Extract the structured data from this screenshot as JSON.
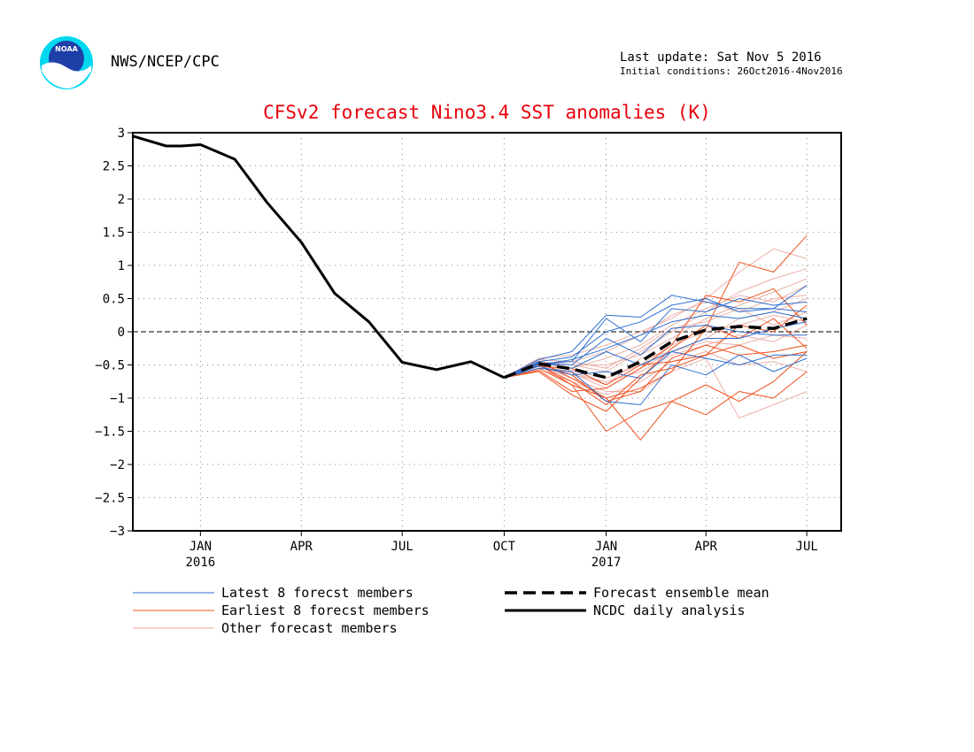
{
  "header": {
    "agency": "NWS/NCEP/CPC",
    "last_update": "Last update: Sat Nov  5 2016",
    "initial_conditions": "Initial conditions: 26Oct2016-4Nov2016",
    "logo_text": "NOAA"
  },
  "colors": {
    "title": "#e8000b",
    "latest": "#2c6fd1",
    "earliest": "#f0501e",
    "other": "#e8a39a",
    "mean": "#000000",
    "analysis": "#000000"
  },
  "chart_data": {
    "type": "line",
    "title": "CFSv2 forecast Nino3.4 SST anomalies (K)",
    "xlabel": "",
    "ylabel": "",
    "ylim": [
      -3,
      3
    ],
    "yticks": [
      "3",
      "2.5",
      "2",
      "1.5",
      "1",
      "0.5",
      "0",
      "−0.5",
      "−1",
      "−1.5",
      "−2",
      "−2.5",
      "−3"
    ],
    "xlim": [
      "2015-11",
      "2017-08"
    ],
    "xticks": [
      {
        "month": "JAN",
        "year": "2016"
      },
      {
        "month": "APR",
        "year": ""
      },
      {
        "month": "JUL",
        "year": ""
      },
      {
        "month": "OCT",
        "year": ""
      },
      {
        "month": "JAN",
        "year": "2017"
      },
      {
        "month": "APR",
        "year": ""
      },
      {
        "month": "JUL",
        "year": ""
      }
    ],
    "grid": true,
    "zero_line": true,
    "series": [
      {
        "name": "NCDC daily analysis",
        "style": "solid-thick",
        "points": [
          [
            "2015-11-01",
            2.95
          ],
          [
            "2015-12-01",
            2.8
          ],
          [
            "2015-12-15",
            2.8
          ],
          [
            "2016-01-01",
            2.82
          ],
          [
            "2016-02-01",
            2.6
          ],
          [
            "2016-03-01",
            1.95
          ],
          [
            "2016-04-01",
            1.35
          ],
          [
            "2016-05-01",
            0.58
          ],
          [
            "2016-06-01",
            0.15
          ],
          [
            "2016-07-01",
            -0.46
          ],
          [
            "2016-08-01",
            -0.57
          ],
          [
            "2016-09-01",
            -0.45
          ],
          [
            "2016-10-01",
            -0.69
          ]
        ]
      },
      {
        "name": "Forecast ensemble mean",
        "style": "dashed-thick",
        "points": [
          [
            "2016-10-01",
            -0.69
          ],
          [
            "2016-11-01",
            -0.48
          ],
          [
            "2016-12-01",
            -0.56
          ],
          [
            "2017-01-01",
            -0.69
          ],
          [
            "2017-02-01",
            -0.45
          ],
          [
            "2017-03-01",
            -0.15
          ],
          [
            "2017-04-01",
            0.03
          ],
          [
            "2017-05-01",
            0.08
          ],
          [
            "2017-06-01",
            0.05
          ],
          [
            "2017-07-01",
            0.2
          ]
        ]
      },
      {
        "name": "Latest 8 forecst members",
        "style": "thin-blue",
        "months": [
          "2016-10-01",
          "2016-11-01",
          "2016-12-01",
          "2017-01-01",
          "2017-02-01",
          "2017-03-01",
          "2017-04-01",
          "2017-05-01",
          "2017-06-01",
          "2017-07-01"
        ],
        "members": [
          [
            -0.69,
            -0.42,
            -0.3,
            0.25,
            0.22,
            0.55,
            0.45,
            0.35,
            0.35,
            0.7
          ],
          [
            -0.69,
            -0.48,
            -0.45,
            0.2,
            -0.15,
            0.35,
            0.3,
            0.5,
            0.4,
            0.45
          ],
          [
            -0.69,
            -0.5,
            -0.42,
            -0.25,
            -0.05,
            0.15,
            0.25,
            0.2,
            0.3,
            0.2
          ],
          [
            -0.69,
            -0.46,
            -0.55,
            -0.3,
            -0.5,
            -0.3,
            -0.4,
            -0.5,
            -0.35,
            -0.35
          ],
          [
            -0.69,
            -0.55,
            -0.6,
            -1.05,
            -1.1,
            -0.5,
            -0.65,
            -0.35,
            -0.6,
            -0.4
          ],
          [
            -0.69,
            -0.45,
            -0.38,
            0.0,
            0.15,
            0.4,
            0.5,
            0.3,
            0.35,
            0.3
          ],
          [
            -0.69,
            -0.52,
            -0.65,
            -0.6,
            -0.7,
            -0.3,
            -0.1,
            -0.1,
            0.05,
            0.15
          ],
          [
            -0.69,
            -0.47,
            -0.5,
            -0.1,
            -0.35,
            0.05,
            0.1,
            0.0,
            -0.05,
            -0.05
          ]
        ]
      },
      {
        "name": "Earliest 8 forecst members",
        "style": "thin-orange",
        "months": [
          "2016-10-01",
          "2016-11-01",
          "2016-12-01",
          "2017-01-01",
          "2017-02-01",
          "2017-03-01",
          "2017-04-01",
          "2017-05-01",
          "2017-06-01",
          "2017-07-01"
        ],
        "members": [
          [
            -0.69,
            -0.5,
            -0.8,
            -1.0,
            -1.63,
            -1.05,
            -1.25,
            -0.9,
            -1.0,
            -0.6
          ],
          [
            -0.69,
            -0.55,
            -0.8,
            -1.5,
            -1.2,
            -1.05,
            -0.8,
            -1.05,
            -0.75,
            -0.3
          ],
          [
            -0.69,
            -0.5,
            -0.75,
            -1.1,
            -0.65,
            -0.55,
            -0.35,
            0.1,
            0.0,
            0.4
          ],
          [
            -0.69,
            -0.45,
            -0.7,
            -1.0,
            -0.85,
            -0.6,
            0.05,
            1.05,
            0.9,
            1.45
          ],
          [
            -0.69,
            -0.58,
            -0.9,
            -0.85,
            -0.55,
            -0.2,
            0.55,
            0.45,
            0.65,
            0.1
          ],
          [
            -0.69,
            -0.48,
            -0.65,
            -1.05,
            -0.9,
            -0.4,
            -0.2,
            -0.35,
            -0.3,
            -0.2
          ],
          [
            -0.69,
            -0.52,
            -0.55,
            -0.8,
            -0.5,
            -0.45,
            -0.35,
            -0.2,
            -0.4,
            -0.3
          ],
          [
            -0.69,
            -0.6,
            -0.95,
            -1.2,
            -0.7,
            -0.25,
            0.1,
            -0.1,
            0.2,
            -0.25
          ]
        ]
      },
      {
        "name": "Other forecast members",
        "style": "thin-salmon",
        "months": [
          "2016-10-01",
          "2016-11-01",
          "2016-12-01",
          "2017-01-01",
          "2017-02-01",
          "2017-03-01",
          "2017-04-01",
          "2017-05-01",
          "2017-06-01",
          "2017-07-01"
        ],
        "members": [
          [
            -0.69,
            -0.4,
            -0.35,
            -0.2,
            0.0,
            0.2,
            0.5,
            0.9,
            1.25,
            1.1
          ],
          [
            -0.69,
            -0.45,
            -0.5,
            -0.6,
            -0.3,
            0.0,
            0.3,
            0.6,
            0.8,
            0.95
          ],
          [
            -0.69,
            -0.55,
            -0.6,
            -0.8,
            -0.4,
            -0.3,
            -0.1,
            0.2,
            0.3,
            0.5
          ],
          [
            -0.69,
            -0.5,
            -0.7,
            -0.9,
            -0.9,
            -0.6,
            -0.4,
            -1.3,
            -1.1,
            -0.9
          ],
          [
            -0.69,
            -0.48,
            -0.45,
            -0.55,
            -0.25,
            0.05,
            0.15,
            0.35,
            0.1,
            0.3
          ],
          [
            -0.69,
            -0.52,
            -0.65,
            -0.75,
            -0.6,
            -0.35,
            -0.2,
            -0.05,
            -0.15,
            0.1
          ],
          [
            -0.69,
            -0.44,
            -0.55,
            -0.4,
            -0.2,
            0.1,
            0.35,
            0.55,
            0.45,
            0.7
          ],
          [
            -0.69,
            -0.5,
            -0.58,
            -0.7,
            -0.5,
            -0.2,
            0.0,
            0.1,
            0.25,
            0.15
          ],
          [
            -0.69,
            -0.56,
            -0.75,
            -0.95,
            -0.75,
            -0.45,
            -0.3,
            -0.5,
            -0.45,
            -0.6
          ],
          [
            -0.69,
            -0.46,
            -0.5,
            -0.5,
            -0.35,
            -0.1,
            0.2,
            0.4,
            0.6,
            0.8
          ],
          [
            -0.69,
            -0.5,
            -0.62,
            -0.85,
            -0.55,
            -0.3,
            -0.15,
            -0.2,
            -0.05,
            -0.1
          ],
          [
            -0.69,
            -0.42,
            -0.45,
            -0.3,
            -0.05,
            0.25,
            0.45,
            0.3,
            0.5,
            0.55
          ]
        ]
      }
    ],
    "legend": [
      {
        "label": "Latest 8 forecst members",
        "color_key": "latest",
        "style": "thin"
      },
      {
        "label": "Earliest 8 forecst members",
        "color_key": "earliest",
        "style": "thin"
      },
      {
        "label": "Other forecast members",
        "color_key": "other",
        "style": "thin"
      },
      {
        "label": "Forecast ensemble mean",
        "color_key": "mean",
        "style": "dashed"
      },
      {
        "label": "NCDC daily analysis",
        "color_key": "analysis",
        "style": "solid"
      }
    ],
    "legend_position": "bottom"
  }
}
